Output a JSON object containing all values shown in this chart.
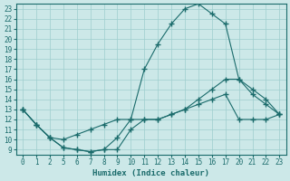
{
  "xlabel": "Humidex (Indice chaleur)",
  "bg_color": "#cce8e8",
  "grid_color": "#9ecece",
  "line_color": "#1a6b6b",
  "ymin": 8.5,
  "ymax": 23.5,
  "tick_labels": [
    0,
    1,
    2,
    5,
    6,
    7,
    8,
    9,
    10,
    11,
    12,
    13,
    14,
    15,
    16,
    17,
    20,
    21,
    22,
    23
  ],
  "yticks": [
    9,
    10,
    11,
    12,
    13,
    14,
    15,
    16,
    17,
    18,
    19,
    20,
    21,
    22,
    23
  ],
  "line1_pos": [
    0,
    1,
    2,
    3,
    4,
    5,
    6,
    7,
    8,
    9,
    10,
    11,
    12,
    13,
    14,
    15,
    16,
    17,
    18,
    19
  ],
  "line1_y": [
    13,
    11.5,
    10.2,
    9.2,
    9.0,
    8.8,
    9.0,
    10.2,
    12.0,
    17.0,
    19.5,
    21.5,
    23.0,
    23.5,
    22.5,
    21.5,
    16.0,
    14.5,
    13.5,
    12.5
  ],
  "line2_pos": [
    0,
    1,
    2,
    3,
    4,
    5,
    6,
    7,
    8,
    9,
    10,
    11,
    12,
    13,
    14,
    15,
    16,
    17,
    18,
    19
  ],
  "line2_y": [
    13,
    11.5,
    10.2,
    9.2,
    9.0,
    8.8,
    9.0,
    9.0,
    11.0,
    12.0,
    12.0,
    12.5,
    13.0,
    14.0,
    15.0,
    16.0,
    16.0,
    15.0,
    14.0,
    12.5
  ],
  "line3_pos": [
    0,
    1,
    2,
    3,
    4,
    5,
    6,
    7,
    8,
    9,
    10,
    11,
    12,
    13,
    14,
    15,
    16,
    17,
    18,
    19
  ],
  "line3_y": [
    13,
    11.5,
    10.2,
    10.0,
    10.5,
    11.0,
    11.5,
    12.0,
    12.0,
    12.0,
    12.0,
    12.5,
    13.0,
    13.5,
    14.0,
    14.5,
    12.0,
    12.0,
    12.0,
    12.5
  ]
}
